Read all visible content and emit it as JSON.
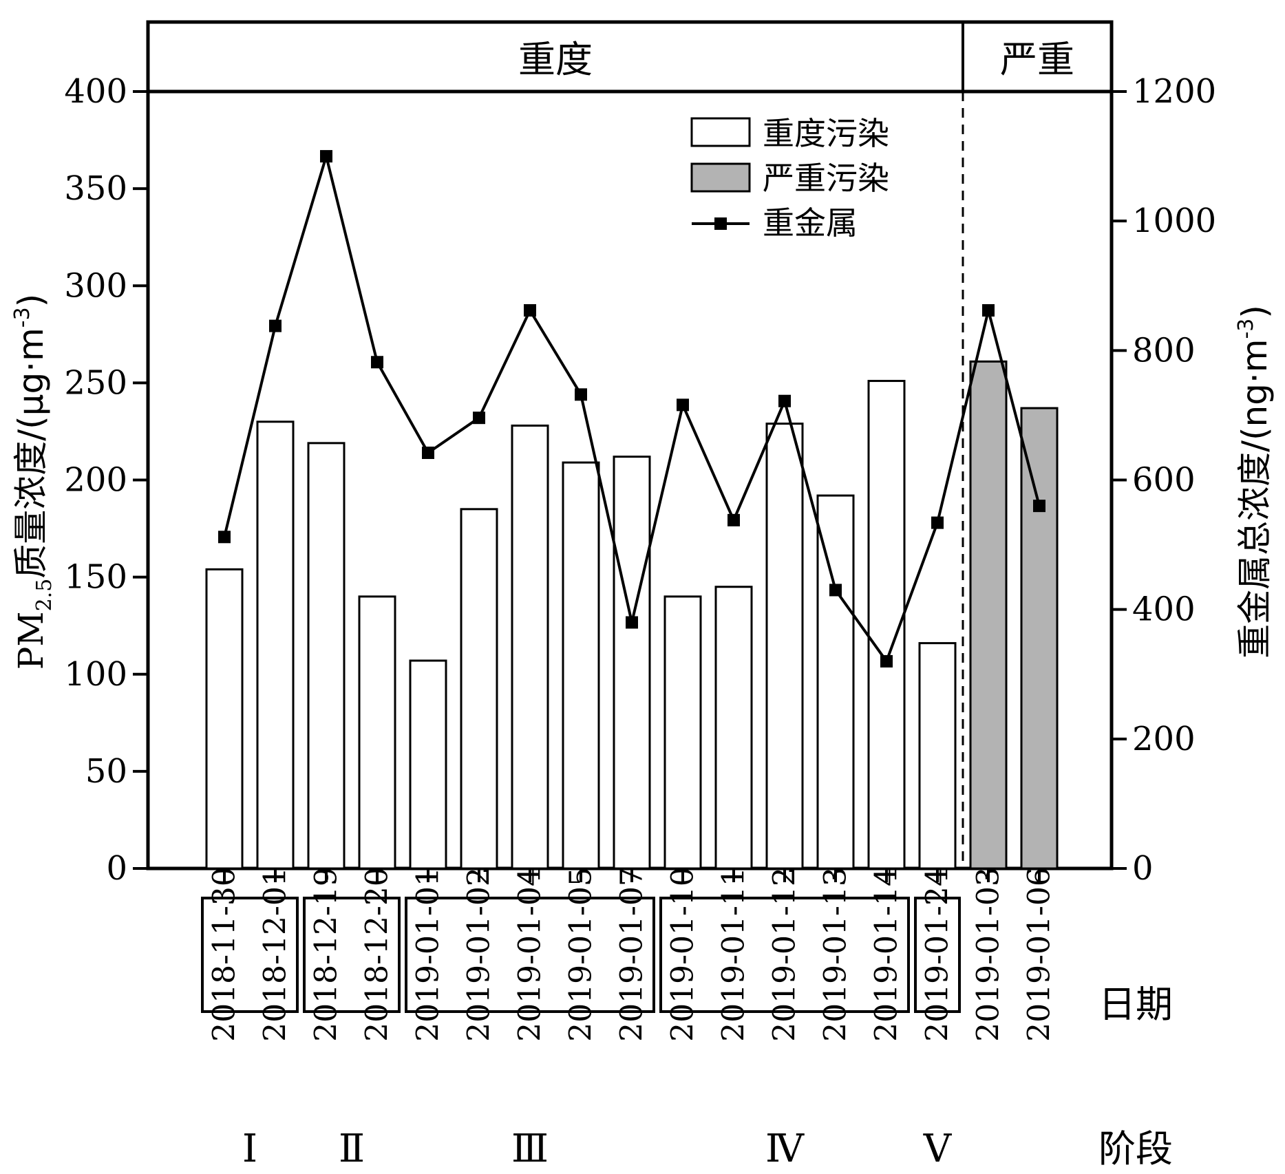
{
  "chart_data": {
    "type": "bar",
    "xlabel": "日期",
    "stage_label": "阶段",
    "ylabel_left": {
      "main": "PM",
      "sub": "2.5",
      "rest": "质量浓度/(μg·m",
      "sup": "-3",
      "close": ")"
    },
    "ylabel_right": {
      "main": "重金属总浓度/(ng·m",
      "sup": "-3",
      "close": ")"
    },
    "ylim_left": [
      0,
      400
    ],
    "ylim_right": [
      0,
      1200
    ],
    "yticks_left": [
      0,
      50,
      100,
      150,
      200,
      250,
      300,
      350,
      400
    ],
    "yticks_right": [
      0,
      200,
      400,
      600,
      800,
      1000,
      1200
    ],
    "categories": [
      "2018-11-30",
      "2018-12-01",
      "2018-12-19",
      "2018-12-20",
      "2019-01-01",
      "2019-01-02",
      "2019-01-04",
      "2019-01-05",
      "2019-01-07",
      "2019-01-10",
      "2019-01-11",
      "2019-01-12",
      "2019-01-13",
      "2019-01-14",
      "2019-01-24",
      "2019-01-03",
      "2019-01-06"
    ],
    "series": [
      {
        "name": "重度污染",
        "kind": "bar",
        "axis": "left",
        "color": "#ffffff",
        "values": [
          154,
          230,
          219,
          140,
          107,
          185,
          228,
          209,
          212,
          140,
          145,
          229,
          192,
          251,
          116,
          null,
          null
        ]
      },
      {
        "name": "严重污染",
        "kind": "bar",
        "axis": "left",
        "color": "#b3b3b3",
        "values": [
          null,
          null,
          null,
          null,
          null,
          null,
          null,
          null,
          null,
          null,
          null,
          null,
          null,
          null,
          null,
          261,
          237
        ]
      },
      {
        "name": "重金属",
        "kind": "line",
        "axis": "right",
        "color": "#000000",
        "values": [
          512,
          838,
          1100,
          782,
          642,
          696,
          862,
          732,
          380,
          716,
          538,
          722,
          430,
          320,
          534,
          862,
          560
        ]
      }
    ],
    "stages": [
      {
        "label": "Ⅰ",
        "from": 0,
        "to": 1
      },
      {
        "label": "Ⅱ",
        "from": 2,
        "to": 3
      },
      {
        "label": "Ⅲ",
        "from": 4,
        "to": 8
      },
      {
        "label": "Ⅳ",
        "from": 9,
        "to": 13
      },
      {
        "label": "Ⅴ",
        "from": 14,
        "to": 14
      }
    ],
    "header_bands": [
      {
        "label": "重度",
        "from": 0,
        "to": 14
      },
      {
        "label": "严重",
        "from": 15,
        "to": 16
      }
    ],
    "legend_position": "top-right",
    "grid": false
  }
}
